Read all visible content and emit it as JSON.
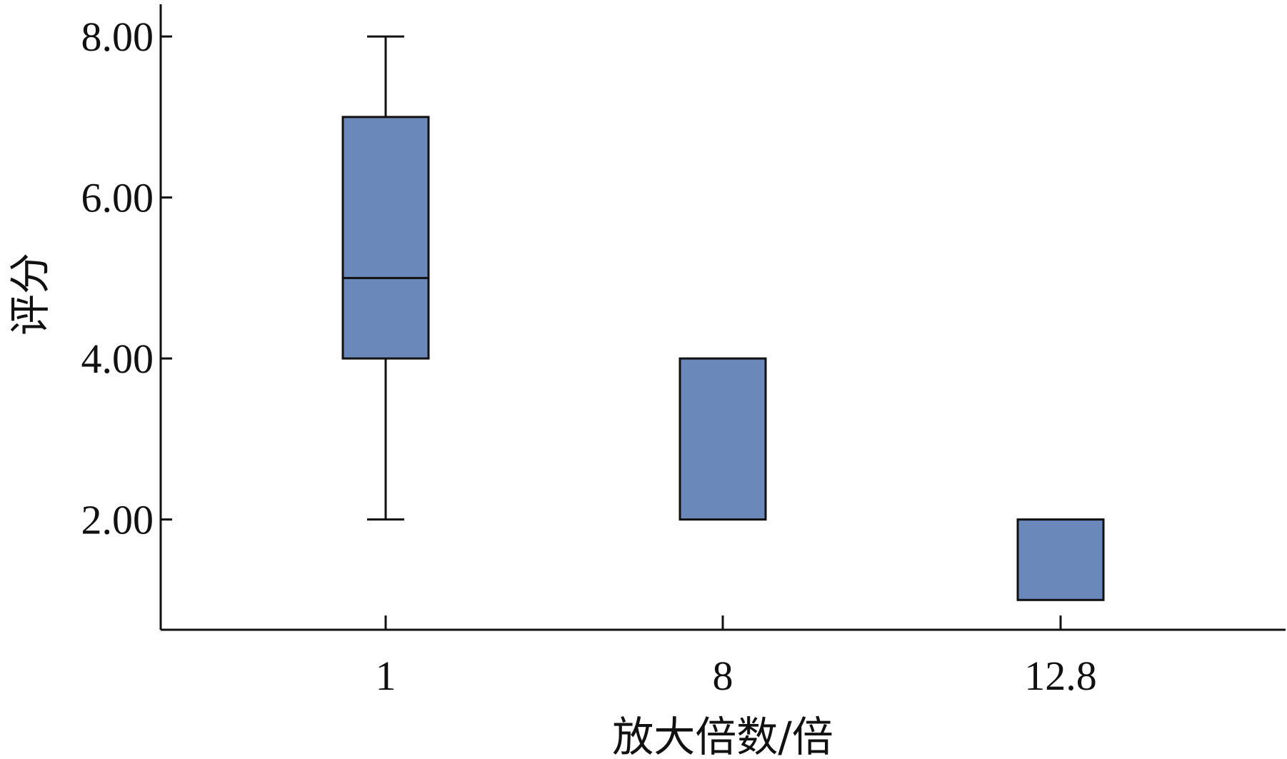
{
  "chart_data": {
    "type": "box",
    "title": "",
    "xlabel": "放大倍数/倍",
    "ylabel": "评分",
    "categories": [
      "1",
      "8",
      "12.8"
    ],
    "boxes": [
      {
        "category": "1",
        "min": 2,
        "q1": 4,
        "median": 5,
        "q3": 7,
        "max": 8
      },
      {
        "category": "8",
        "min": 2,
        "q1": 2,
        "median": 2,
        "q3": 4,
        "max": 4
      },
      {
        "category": "12.8",
        "min": 1,
        "q1": 1,
        "median": 1,
        "q3": 2,
        "max": 2
      }
    ],
    "yticks": [
      "2.00",
      "4.00",
      "6.00",
      "8.00"
    ],
    "ylim": [
      0.63,
      8.4
    ],
    "grid": false,
    "colors": {
      "box_fill": "#6a88b9",
      "stroke": "#111111"
    }
  }
}
